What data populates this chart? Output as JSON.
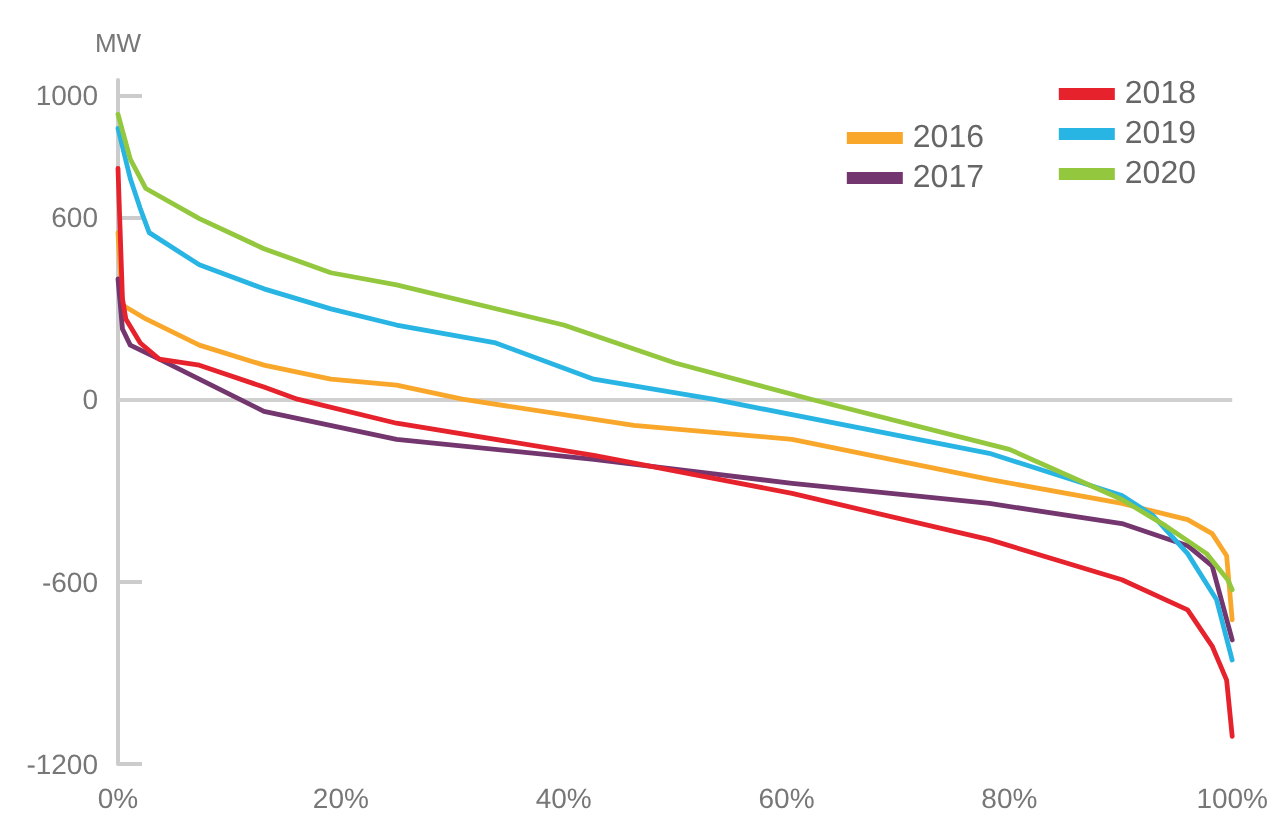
{
  "chart_data": {
    "type": "line",
    "ylabel": "MW",
    "legend": "top right",
    "grid": false,
    "marker": "none",
    "line_style": "solid",
    "xlim": [
      0,
      100
    ],
    "xticks": [
      {
        "value": 0,
        "label": "0%"
      },
      {
        "value": 20,
        "label": "20%"
      },
      {
        "value": 40,
        "label": "40%"
      },
      {
        "value": 60,
        "label": "60%"
      },
      {
        "value": 80,
        "label": "80%"
      },
      {
        "value": 100,
        "label": "100%"
      }
    ],
    "ylim": [
      -1200,
      1050
    ],
    "yticks": [
      -1200,
      -600,
      0,
      600,
      1000
    ],
    "ref_lines": [
      {
        "axis": "y",
        "value": 0,
        "color": "#d0d0d0"
      }
    ],
    "series": [
      {
        "name": "2016",
        "color": "#f9a72b",
        "x": [
          0,
          0.4,
          2.5,
          7.3,
          13.1,
          19.1,
          25,
          30.9,
          46.3,
          60.5,
          78.2,
          90.1,
          96,
          98.2,
          99.5,
          100
        ],
        "values": [
          548,
          310,
          264,
          178,
          112,
          66,
          46,
          0,
          -86,
          -132,
          -264,
          -343,
          -396,
          -442,
          -515,
          -726
        ]
      },
      {
        "name": "2017",
        "color": "#74366f",
        "x": [
          0,
          0.4,
          1.1,
          3.7,
          7.3,
          13.1,
          25,
          42.7,
          60.5,
          78.2,
          90.1,
          96,
          98.2,
          100
        ],
        "values": [
          396,
          231,
          178,
          132,
          66,
          -40,
          -132,
          -198,
          -277,
          -343,
          -409,
          -482,
          -548,
          -792
        ]
      },
      {
        "name": "2018",
        "color": "#e6222c",
        "x": [
          0,
          0.4,
          0.7,
          2,
          3.7,
          7.3,
          13.1,
          16.1,
          25,
          42.7,
          60.5,
          78.2,
          90.1,
          96,
          98.2,
          99.5,
          100
        ],
        "values": [
          759,
          330,
          264,
          185,
          132,
          112,
          40,
          0,
          -79,
          -185,
          -310,
          -462,
          -594,
          -693,
          -812,
          -924,
          -1109
        ]
      },
      {
        "name": "2019",
        "color": "#29b5e3",
        "x": [
          0,
          1.1,
          2,
          2.8,
          7.3,
          13.1,
          19.1,
          25,
          33.9,
          42.7,
          53.4,
          78.2,
          90.1,
          92.9,
          96,
          98.6,
          100
        ],
        "values": [
          891,
          726,
          627,
          548,
          442,
          363,
          297,
          244,
          185,
          66,
          0,
          -178,
          -317,
          -383,
          -508,
          -660,
          -858
        ]
      },
      {
        "name": "2020",
        "color": "#93c83e",
        "x": [
          0,
          1.1,
          2.5,
          7.3,
          13.1,
          19.1,
          25,
          40,
          50,
          62.2,
          80,
          90.1,
          94,
          97.7,
          99.6,
          100
        ],
        "values": [
          937,
          790,
          693,
          594,
          495,
          416,
          376,
          244,
          119,
          0,
          -165,
          -330,
          -416,
          -508,
          -594,
          -627
        ]
      }
    ]
  }
}
